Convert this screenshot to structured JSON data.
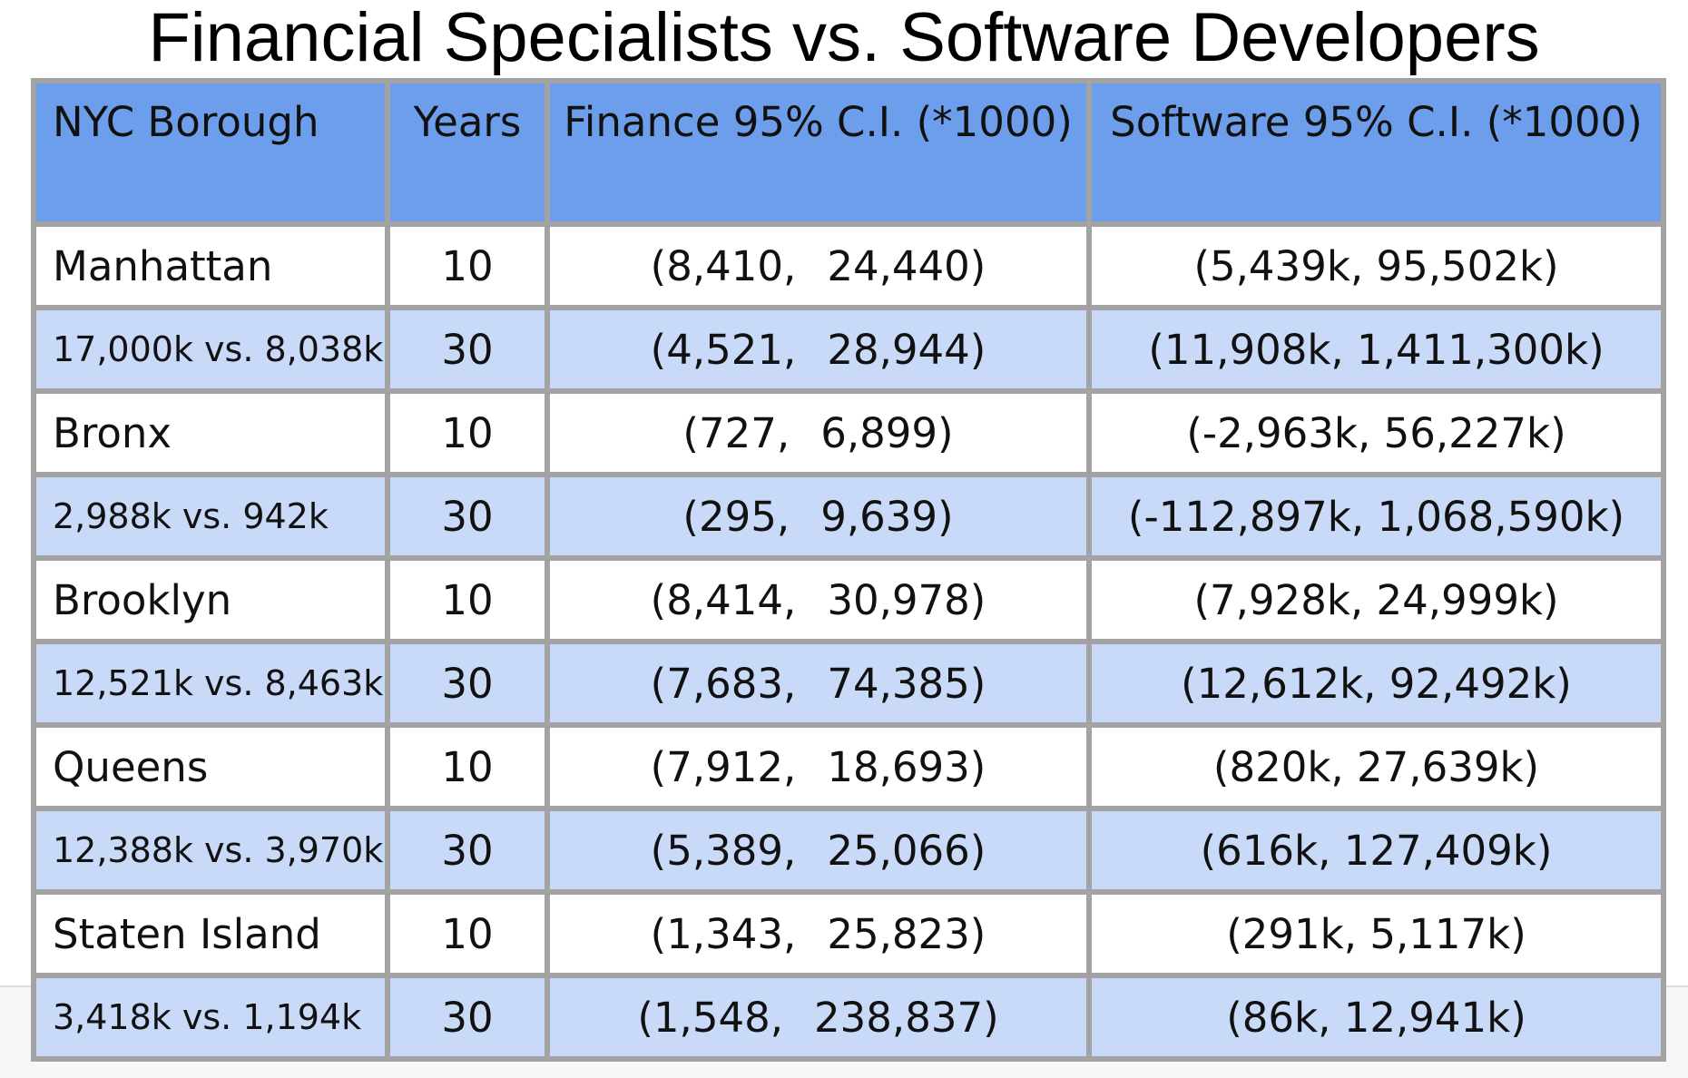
{
  "title": "Financial Specialists vs. Software Developers",
  "colors": {
    "header_bg": "#6d9eeb",
    "band_bg": "#c9daf8",
    "row_bg": "#ffffff",
    "grid": "#a3a3a3"
  },
  "chart_data": {
    "type": "table",
    "title": "Financial Specialists vs. Software Developers",
    "columns": [
      "NYC Borough",
      "Years",
      "Finance 95% C.I. (*1000)",
      "Software 95% C.I. (*1000)"
    ],
    "rows": [
      {
        "borough": "Manhattan",
        "years": "10",
        "finance_low": "(8,410,",
        "finance_high": "24,440)",
        "software": "(5,439k, 95,502k)"
      },
      {
        "borough": "17,000k vs. 8,038k",
        "years": "30",
        "finance_low": "(4,521,",
        "finance_high": "28,944)",
        "software": "(11,908k, 1,411,300k)"
      },
      {
        "borough": "Bronx",
        "years": "10",
        "finance_low": "(727,",
        "finance_high": "6,899)",
        "software": "(-2,963k, 56,227k)"
      },
      {
        "borough": "2,988k vs. 942k",
        "years": "30",
        "finance_low": "(295,",
        "finance_high": "9,639)",
        "software": "(-112,897k, 1,068,590k)"
      },
      {
        "borough": "Brooklyn",
        "years": "10",
        "finance_low": "(8,414,",
        "finance_high": "30,978)",
        "software": "(7,928k, 24,999k)"
      },
      {
        "borough": "12,521k vs. 8,463k",
        "years": "30",
        "finance_low": "(7,683,",
        "finance_high": "74,385)",
        "software": "(12,612k, 92,492k)"
      },
      {
        "borough": "Queens",
        "years": "10",
        "finance_low": "(7,912,",
        "finance_high": "18,693)",
        "software": "(820k, 27,639k)"
      },
      {
        "borough": "12,388k vs. 3,970k",
        "years": "30",
        "finance_low": "(5,389,",
        "finance_high": "25,066)",
        "software": "(616k, 127,409k)"
      },
      {
        "borough": "Staten Island",
        "years": "10",
        "finance_low": "(1,343,",
        "finance_high": "25,823)",
        "software": "(291k, 5,117k)"
      },
      {
        "borough": "3,418k vs. 1,194k",
        "years": "30",
        "finance_low": "(1,548,",
        "finance_high": "238,837)",
        "software": "(86k, 12,941k)"
      }
    ]
  }
}
